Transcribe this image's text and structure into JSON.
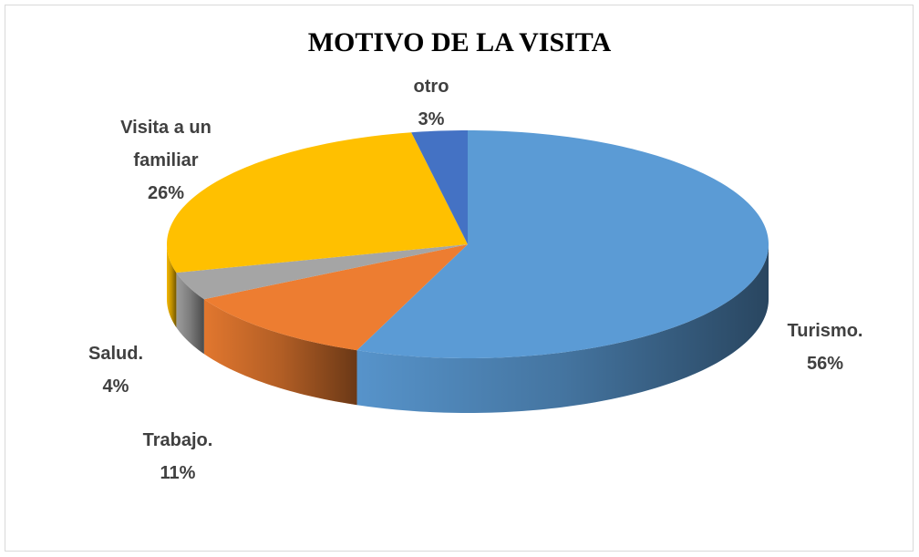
{
  "chart_data": {
    "type": "pie",
    "title": "MOTIVO DE LA VISITA",
    "categories": [
      "Turismo.",
      "Trabajo.",
      "Salud.",
      "Visita a un familiar",
      "otro"
    ],
    "values": [
      56,
      11,
      4,
      26,
      3
    ],
    "value_labels": [
      "56%",
      "11%",
      "4%",
      "26%",
      "3%"
    ],
    "colors": [
      "#5b9bd5",
      "#ed7d31",
      "#a5a5a5",
      "#ffc000",
      "#4472c4"
    ]
  }
}
